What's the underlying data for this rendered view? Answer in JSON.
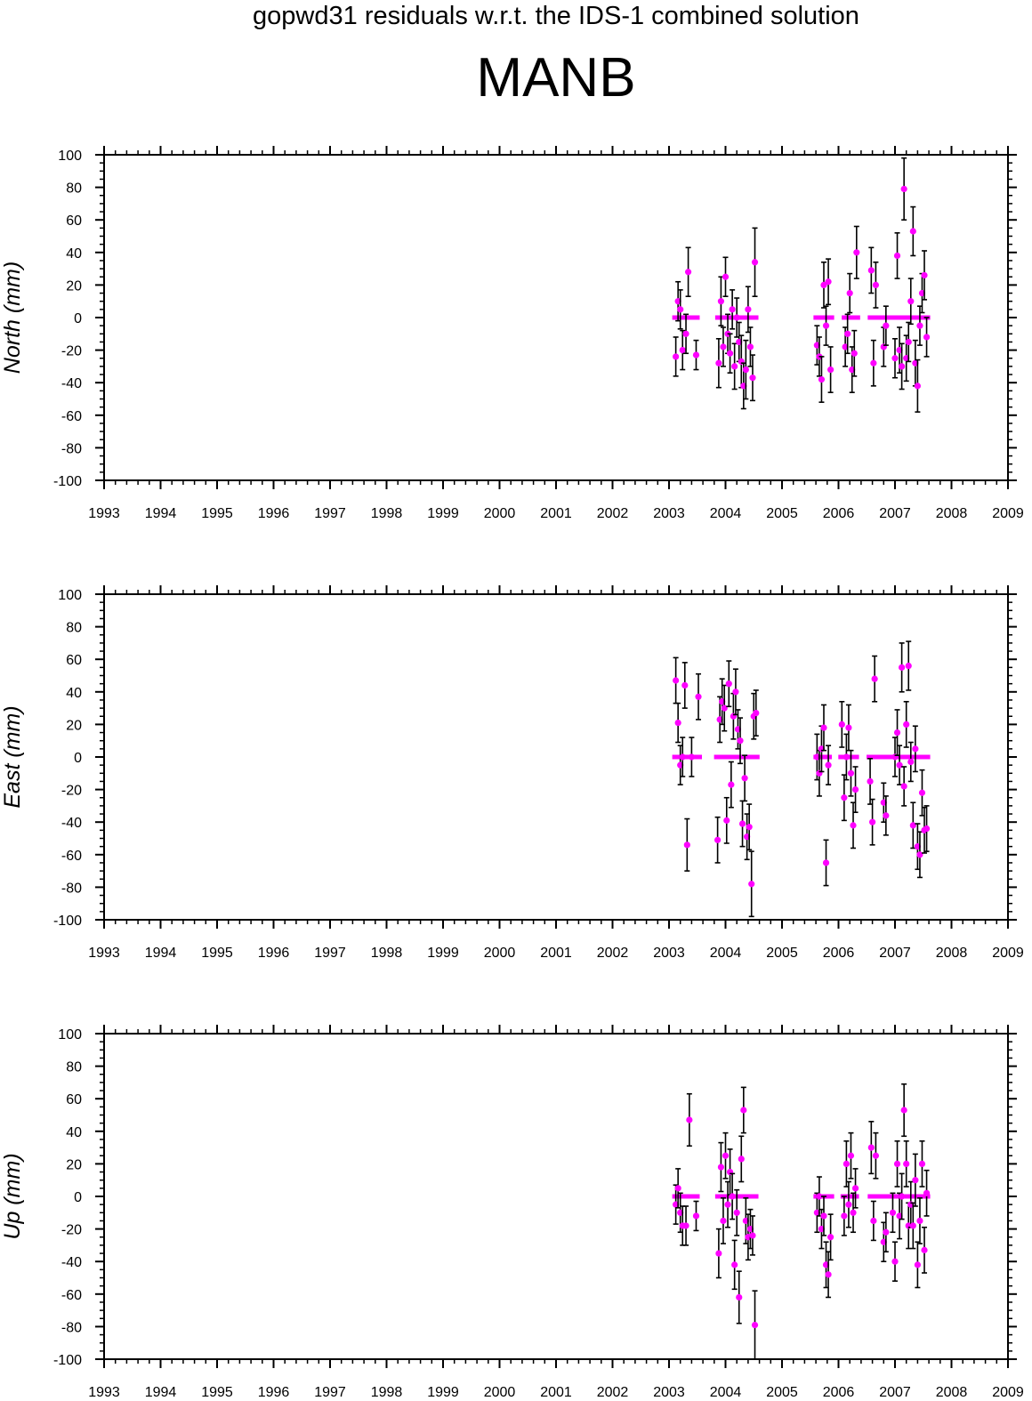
{
  "header": {
    "title": "gopwd31 residuals w.r.t. the IDS-1 combined solution",
    "station": "MANB"
  },
  "colors": {
    "point": "#ff00ff",
    "errorbar": "#000000",
    "axis": "#000000",
    "background": "#ffffff"
  },
  "chart_data": [
    {
      "type": "scatter",
      "title": "",
      "xlabel": "",
      "ylabel": "North (mm)",
      "xlim": [
        1993,
        2009
      ],
      "ylim": [
        -100,
        100
      ],
      "x_ticks": [
        "1993",
        "1994",
        "1995",
        "1996",
        "1997",
        "1998",
        "1999",
        "2000",
        "2001",
        "2002",
        "2003",
        "2004",
        "2005",
        "2006",
        "2007",
        "2008",
        "2009"
      ],
      "y_ticks": [
        "100",
        "80",
        "60",
        "40",
        "20",
        "0",
        "-20",
        "-40",
        "-60",
        "-80",
        "-100"
      ],
      "grid": false,
      "error_bars": true,
      "series": [
        {
          "x": [
            2003.12,
            2003.16,
            2003.2,
            2003.24,
            2003.3,
            2003.34,
            2003.48,
            2003.88,
            2003.92,
            2003.96,
            2004.0,
            2004.04,
            2004.08,
            2004.12,
            2004.16,
            2004.2,
            2004.24,
            2004.28,
            2004.32,
            2004.36,
            2004.4,
            2004.44,
            2004.48,
            2004.52,
            2005.62,
            2005.66,
            2005.7,
            2005.74,
            2005.78,
            2005.82,
            2005.86,
            2006.12,
            2006.16,
            2006.2,
            2006.24,
            2006.28,
            2006.32,
            2006.58,
            2006.62,
            2006.66,
            2006.8,
            2006.84,
            2007.0,
            2007.04,
            2007.08,
            2007.12,
            2007.16,
            2007.2,
            2007.24,
            2007.28,
            2007.32,
            2007.36,
            2007.4,
            2007.44,
            2007.48,
            2007.52,
            2007.56
          ],
          "y": [
            -24,
            10,
            5,
            -20,
            -10,
            28,
            -23,
            -28,
            10,
            -18,
            25,
            -10,
            -22,
            5,
            -30,
            0,
            -15,
            -27,
            -42,
            -32,
            5,
            -18,
            -37,
            34,
            -17,
            -24,
            -38,
            20,
            -5,
            22,
            -32,
            -18,
            -10,
            15,
            -32,
            -22,
            40,
            29,
            -28,
            20,
            -18,
            -5,
            -25,
            38,
            -20,
            -30,
            79,
            -25,
            -15,
            10,
            53,
            -28,
            -42,
            -5,
            15,
            26,
            -12
          ],
          "err": [
            12,
            12,
            12,
            12,
            12,
            15,
            9,
            15,
            15,
            12,
            12,
            12,
            12,
            12,
            14,
            12,
            12,
            16,
            14,
            18,
            14,
            12,
            14,
            21,
            12,
            12,
            14,
            14,
            12,
            14,
            14,
            12,
            12,
            12,
            14,
            14,
            16,
            14,
            14,
            14,
            12,
            12,
            12,
            14,
            14,
            14,
            19,
            14,
            12,
            14,
            15,
            14,
            16,
            12,
            12,
            15,
            12
          ]
        }
      ]
    },
    {
      "type": "scatter",
      "title": "",
      "xlabel": "",
      "ylabel": "East (mm)",
      "xlim": [
        1993,
        2009
      ],
      "ylim": [
        -100,
        100
      ],
      "x_ticks": [
        "1993",
        "1994",
        "1995",
        "1996",
        "1997",
        "1998",
        "1999",
        "2000",
        "2001",
        "2002",
        "2003",
        "2004",
        "2005",
        "2006",
        "2007",
        "2008",
        "2009"
      ],
      "y_ticks": [
        "100",
        "80",
        "60",
        "40",
        "20",
        "0",
        "-20",
        "-40",
        "-60",
        "-80",
        "-100"
      ],
      "grid": false,
      "error_bars": true,
      "series": [
        {
          "x": [
            2003.12,
            2003.16,
            2003.2,
            2003.24,
            2003.28,
            2003.32,
            2003.4,
            2003.52,
            2003.86,
            2003.9,
            2003.94,
            2003.98,
            2004.02,
            2004.06,
            2004.1,
            2004.14,
            2004.18,
            2004.22,
            2004.26,
            2004.3,
            2004.34,
            2004.38,
            2004.42,
            2004.46,
            2004.5,
            2004.54,
            2005.62,
            2005.66,
            2005.7,
            2005.74,
            2005.78,
            2005.82,
            2006.06,
            2006.1,
            2006.14,
            2006.18,
            2006.22,
            2006.26,
            2006.3,
            2006.56,
            2006.6,
            2006.64,
            2006.8,
            2006.84,
            2007.0,
            2007.04,
            2007.08,
            2007.12,
            2007.16,
            2007.2,
            2007.24,
            2007.28,
            2007.32,
            2007.36,
            2007.4,
            2007.44,
            2007.48,
            2007.52,
            2007.56
          ],
          "y": [
            47,
            21,
            -5,
            0,
            44,
            -54,
            0,
            37,
            -51,
            23,
            34,
            30,
            -39,
            45,
            -17,
            25,
            40,
            17,
            10,
            -41,
            -13,
            -49,
            -43,
            -78,
            25,
            27,
            0,
            -10,
            5,
            18,
            -65,
            -5,
            20,
            -25,
            0,
            18,
            -10,
            -42,
            -20,
            -15,
            -40,
            48,
            -28,
            -36,
            0,
            15,
            -5,
            55,
            -18,
            20,
            56,
            -3,
            -42,
            5,
            -55,
            -60,
            -22,
            -45,
            -44
          ],
          "err": [
            14,
            12,
            12,
            12,
            14,
            16,
            12,
            14,
            14,
            14,
            14,
            14,
            14,
            14,
            14,
            14,
            14,
            12,
            14,
            14,
            14,
            14,
            14,
            20,
            14,
            14,
            14,
            14,
            14,
            14,
            14,
            12,
            14,
            14,
            14,
            14,
            14,
            14,
            14,
            14,
            14,
            14,
            12,
            12,
            12,
            14,
            12,
            15,
            12,
            14,
            15,
            12,
            14,
            14,
            14,
            14,
            14,
            14,
            14
          ]
        }
      ]
    },
    {
      "type": "scatter",
      "title": "",
      "xlabel": "",
      "ylabel": "Up (mm)",
      "xlim": [
        1993,
        2009
      ],
      "ylim": [
        -100,
        100
      ],
      "x_ticks": [
        "1993",
        "1994",
        "1995",
        "1996",
        "1997",
        "1998",
        "1999",
        "2000",
        "2001",
        "2002",
        "2003",
        "2004",
        "2005",
        "2006",
        "2007",
        "2008",
        "2009"
      ],
      "y_ticks": [
        "100",
        "80",
        "60",
        "40",
        "20",
        "0",
        "-20",
        "-40",
        "-60",
        "-80",
        "-100"
      ],
      "grid": false,
      "error_bars": true,
      "series": [
        {
          "x": [
            2003.12,
            2003.16,
            2003.2,
            2003.24,
            2003.3,
            2003.36,
            2003.48,
            2003.88,
            2003.92,
            2003.96,
            2004.0,
            2004.04,
            2004.08,
            2004.12,
            2004.16,
            2004.2,
            2004.24,
            2004.28,
            2004.32,
            2004.36,
            2004.4,
            2004.44,
            2004.48,
            2004.52,
            2005.62,
            2005.66,
            2005.7,
            2005.74,
            2005.78,
            2005.82,
            2005.86,
            2006.1,
            2006.14,
            2006.18,
            2006.22,
            2006.26,
            2006.3,
            2006.58,
            2006.62,
            2006.66,
            2006.8,
            2006.84,
            2006.96,
            2007.0,
            2007.04,
            2007.08,
            2007.12,
            2007.16,
            2007.2,
            2007.24,
            2007.28,
            2007.32,
            2007.36,
            2007.4,
            2007.44,
            2007.48,
            2007.52,
            2007.56
          ],
          "y": [
            -5,
            5,
            -10,
            -18,
            -18,
            47,
            -12,
            -35,
            18,
            -15,
            25,
            -5,
            15,
            0,
            -42,
            -10,
            -62,
            23,
            53,
            -15,
            -25,
            -20,
            -24,
            -79,
            -10,
            0,
            -20,
            -12,
            -42,
            -48,
            -25,
            -12,
            20,
            -5,
            25,
            -10,
            5,
            30,
            -15,
            25,
            -28,
            -22,
            -10,
            -40,
            20,
            -12,
            0,
            53,
            20,
            -18,
            -5,
            -18,
            10,
            -42,
            -15,
            20,
            -33,
            2
          ],
          "err": [
            12,
            12,
            12,
            12,
            12,
            16,
            9,
            15,
            15,
            14,
            14,
            14,
            14,
            14,
            15,
            14,
            16,
            14,
            14,
            14,
            14,
            12,
            12,
            21,
            12,
            12,
            12,
            12,
            14,
            14,
            14,
            12,
            14,
            14,
            14,
            12,
            12,
            16,
            12,
            14,
            12,
            12,
            12,
            12,
            14,
            14,
            14,
            16,
            14,
            14,
            14,
            14,
            16,
            14,
            14,
            14,
            14,
            14
          ]
        }
      ]
    }
  ]
}
